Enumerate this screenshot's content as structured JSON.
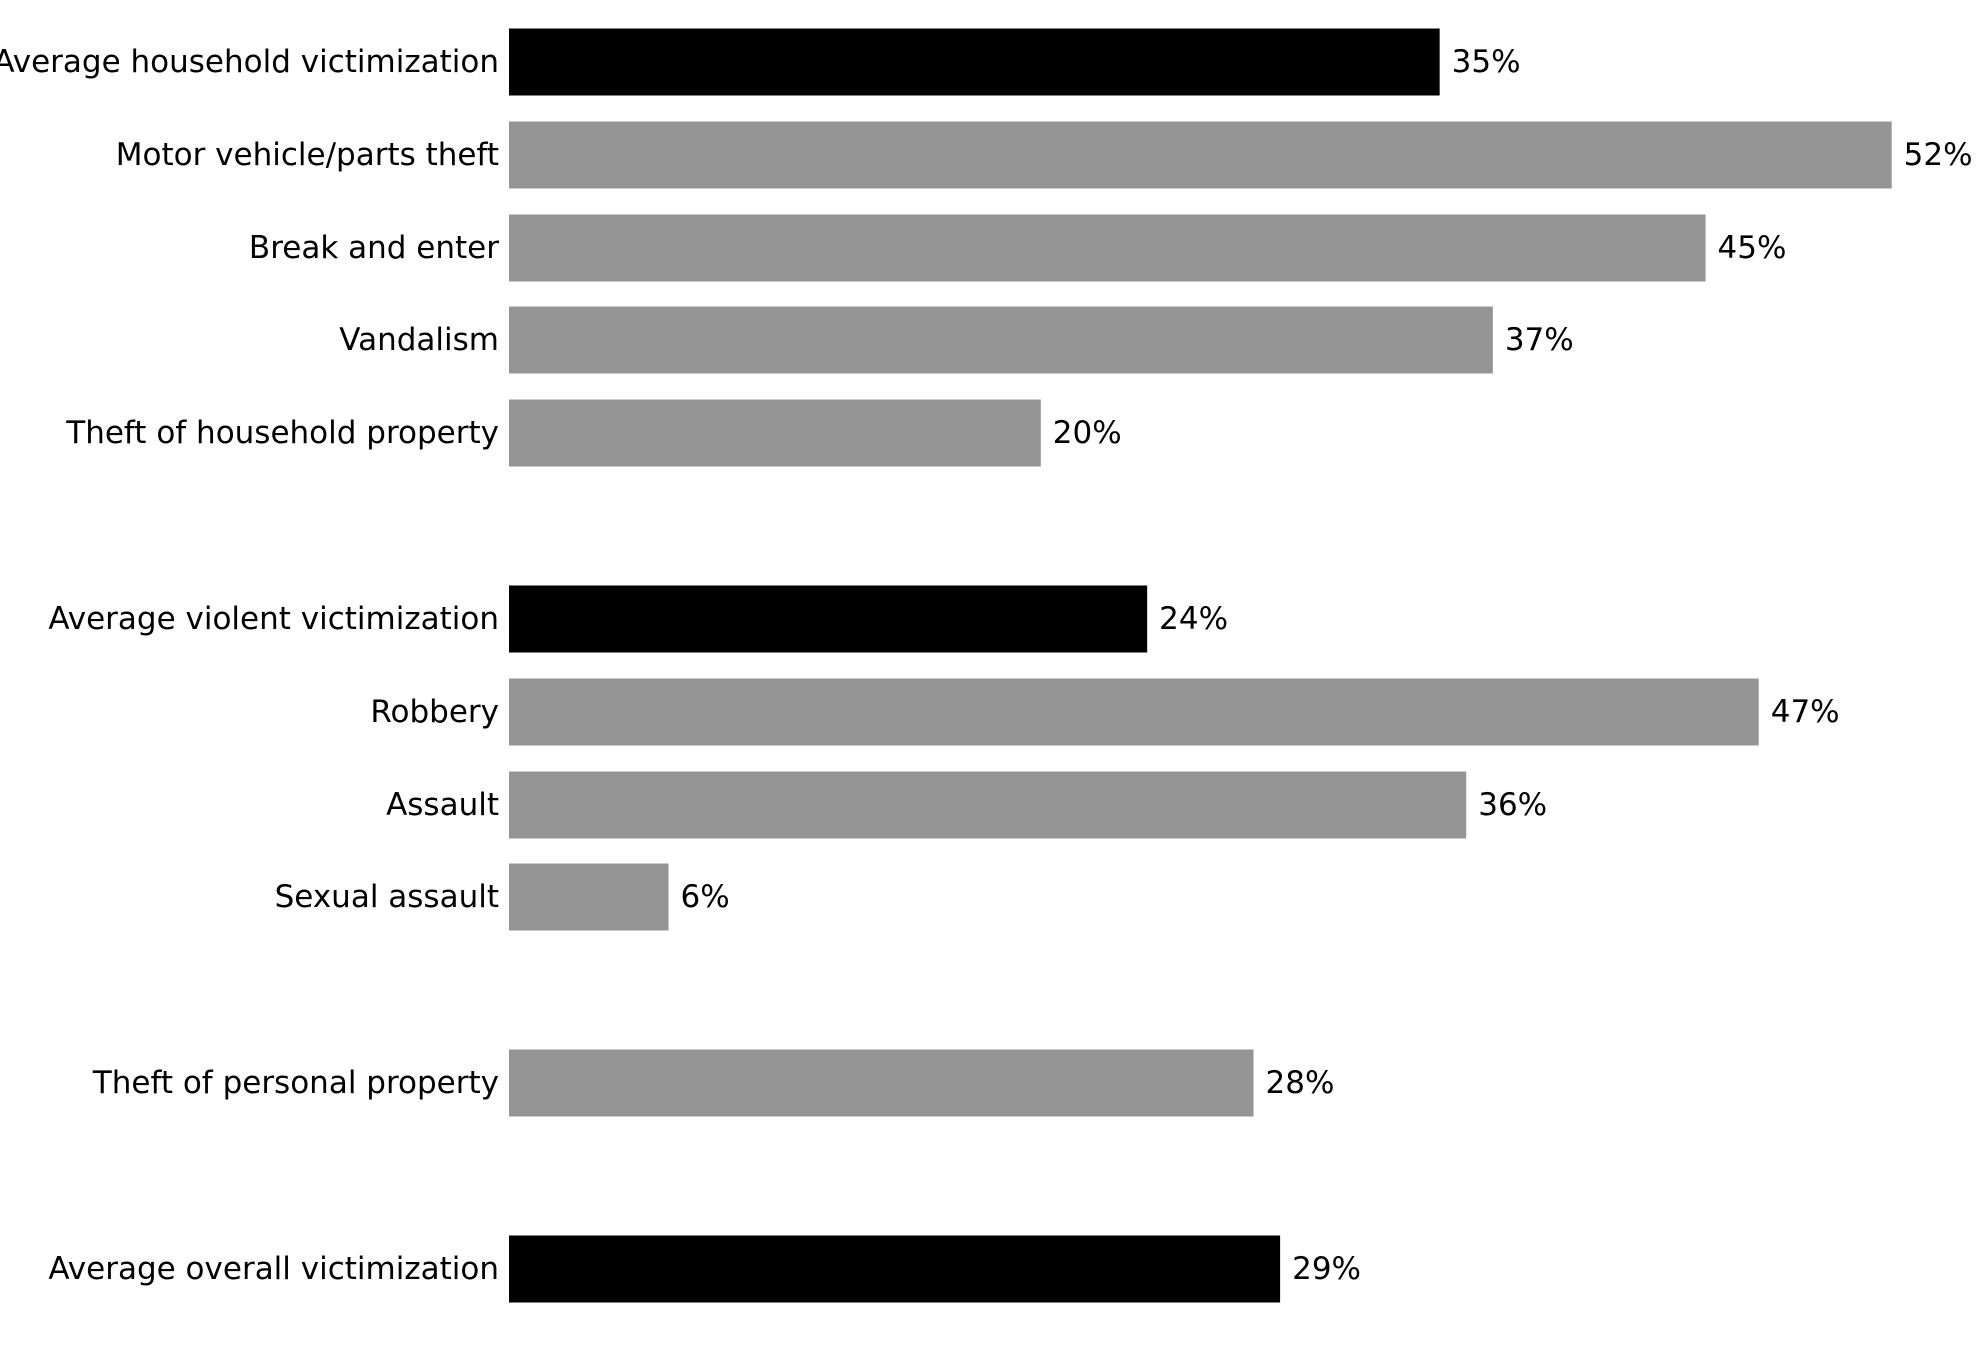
{
  "chart_data": {
    "type": "bar",
    "orientation": "horizontal",
    "title": "",
    "xlabel": "",
    "ylabel": "",
    "xlim": [
      0,
      52
    ],
    "grid": false,
    "legend": "none",
    "value_suffix": "%",
    "colors": {
      "average": "#000000",
      "category": "#969595"
    },
    "bars": [
      {
        "label": "Average household victimization",
        "value": 35,
        "kind": "average"
      },
      {
        "label": "Motor vehicle/parts theft",
        "value": 52,
        "kind": "category"
      },
      {
        "label": "Break and enter",
        "value": 45,
        "kind": "category"
      },
      {
        "label": "Vandalism",
        "value": 37,
        "kind": "category"
      },
      {
        "label": "Theft of household property",
        "value": 20,
        "kind": "category"
      },
      {
        "label": "Average violent victimization",
        "value": 24,
        "kind": "average"
      },
      {
        "label": "Robbery",
        "value": 47,
        "kind": "category"
      },
      {
        "label": "Assault",
        "value": 36,
        "kind": "category"
      },
      {
        "label": "Sexual assault",
        "value": 6,
        "kind": "category"
      },
      {
        "label": "Theft of personal property",
        "value": 28,
        "kind": "category"
      },
      {
        "label": "Average overall victimization",
        "value": 29,
        "kind": "average"
      }
    ],
    "value_labels": [
      "35%",
      "52%",
      "45%",
      "37%",
      "20%",
      "24%",
      "47%",
      "36%",
      "6%",
      "28%",
      "29%"
    ]
  }
}
